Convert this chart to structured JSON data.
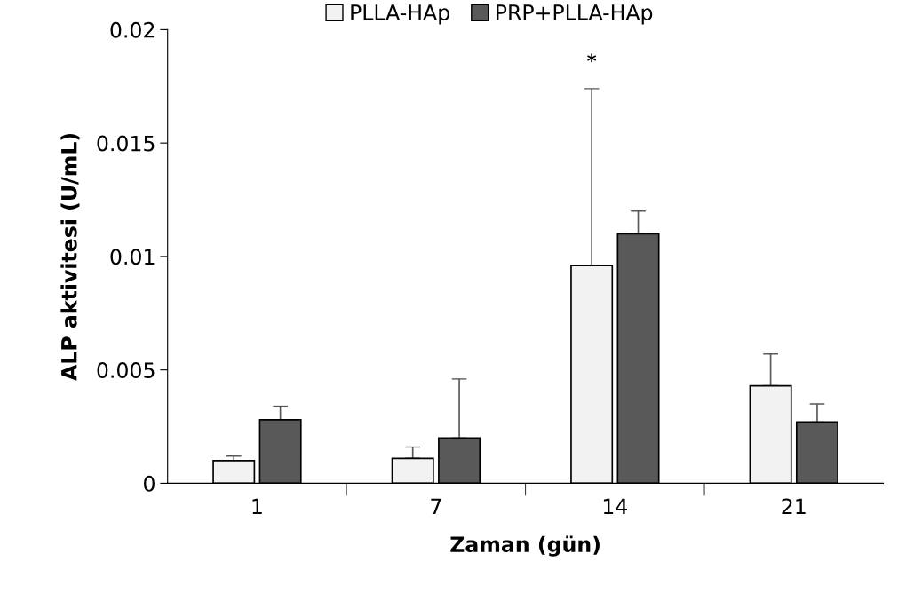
{
  "chart_data": {
    "type": "bar",
    "xlabel": "Zaman (gün)",
    "ylabel": "ALP aktivitesi (U/mL)",
    "categories": [
      "1",
      "7",
      "14",
      "21"
    ],
    "series": [
      {
        "name": "PLLA-HAp",
        "color": "#f2f2f2",
        "values": [
          0.001,
          0.0011,
          0.0096,
          0.0043
        ],
        "errors": [
          [
            0.001,
            0.0012
          ],
          [
            0.0011,
            0.0016
          ],
          [
            0.0096,
            0.0174
          ],
          [
            0.0043,
            0.0057
          ]
        ]
      },
      {
        "name": "PRP+PLLA-HAp",
        "color": "#595959",
        "values": [
          0.0028,
          0.002,
          0.011,
          0.0027
        ],
        "errors": [
          [
            0.0028,
            0.0034
          ],
          [
            0.002,
            0.0046
          ],
          [
            0.011,
            0.012
          ],
          [
            0.0027,
            0.0035
          ]
        ]
      }
    ],
    "ylim": [
      0,
      0.02
    ],
    "yticks": [
      0,
      0.005,
      0.01,
      0.015,
      0.02
    ],
    "annotations": [
      "*"
    ],
    "legend": "top",
    "grid": false
  }
}
